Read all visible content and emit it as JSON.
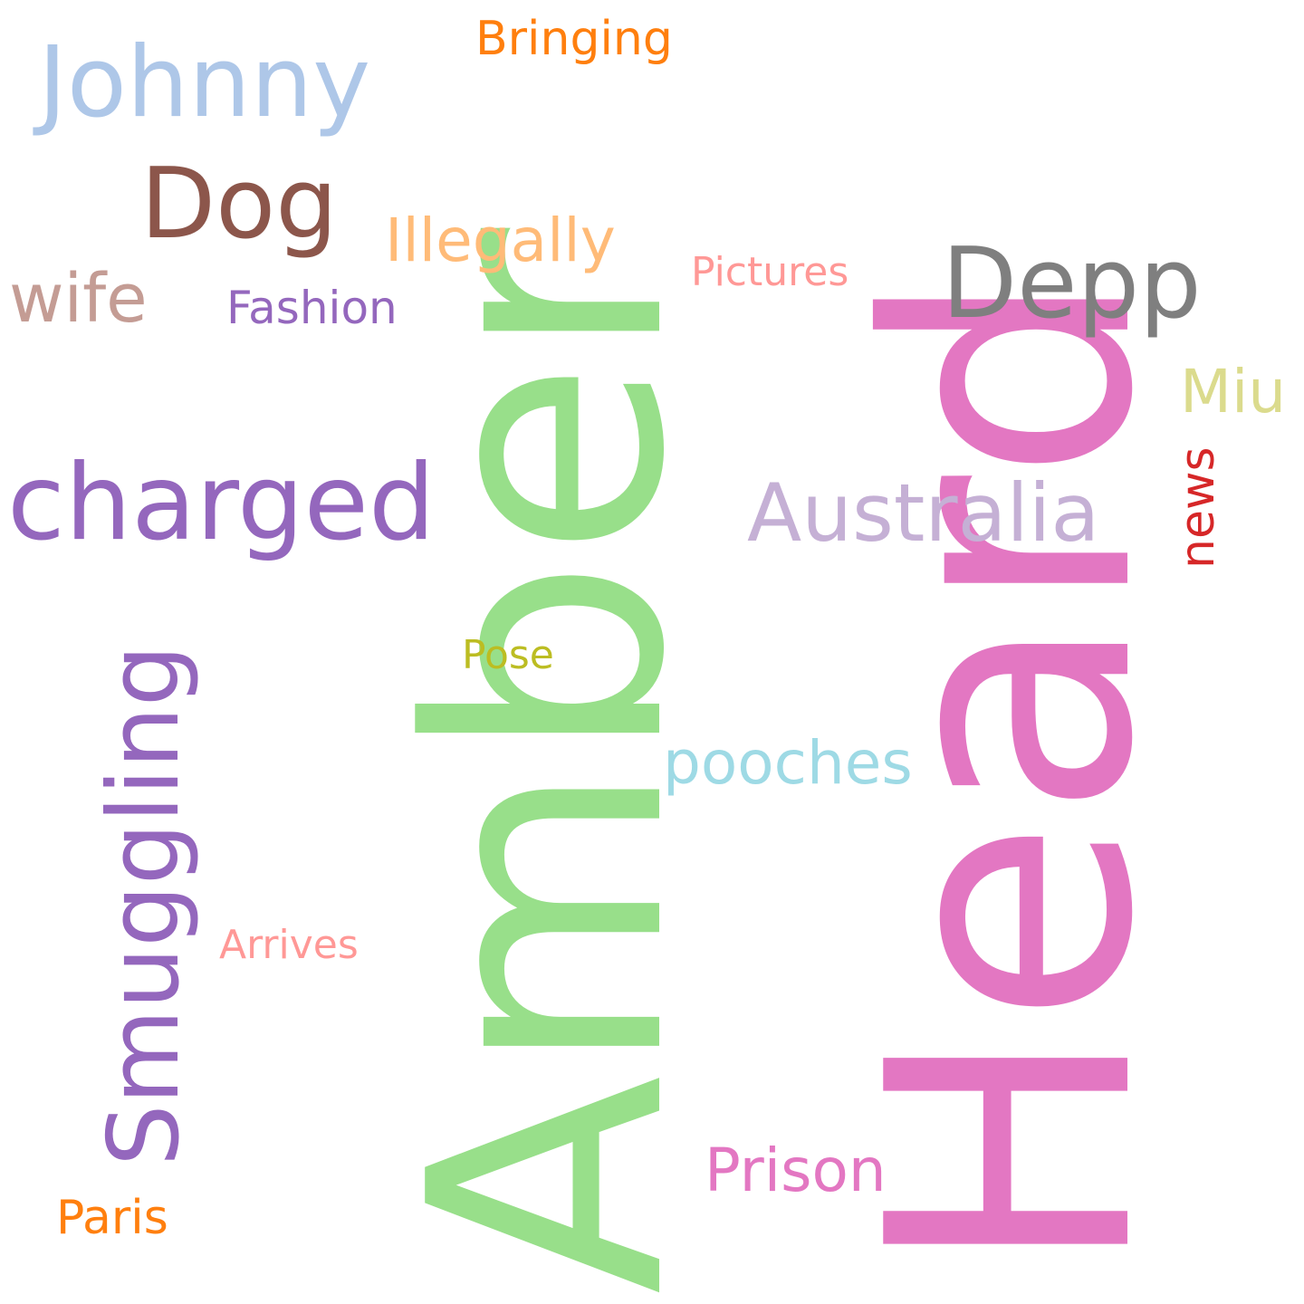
{
  "words": [
    {
      "key": "heard",
      "text": "Heard",
      "color": "#e377c2"
    },
    {
      "key": "amber",
      "text": "Amber",
      "color": "#98df8a"
    },
    {
      "key": "johnny",
      "text": "Johnny",
      "color": "#aec7e8"
    },
    {
      "key": "dog",
      "text": "Dog",
      "color": "#8c564b"
    },
    {
      "key": "depp",
      "text": "Depp",
      "color": "#7f7f7f"
    },
    {
      "key": "charged",
      "text": "charged",
      "color": "#9467bd"
    },
    {
      "key": "smuggling",
      "text": "Smuggling",
      "color": "#9467bd"
    },
    {
      "key": "australia",
      "text": "Australia",
      "color": "#c5b0d5"
    },
    {
      "key": "wife",
      "text": "wife",
      "color": "#c49c94"
    },
    {
      "key": "illegally",
      "text": "Illegally",
      "color": "#ffbb78"
    },
    {
      "key": "prison",
      "text": "Prison",
      "color": "#e377c2"
    },
    {
      "key": "pooches",
      "text": "pooches",
      "color": "#9edae5"
    },
    {
      "key": "miu",
      "text": "Miu",
      "color": "#dbdb8d"
    },
    {
      "key": "news",
      "text": "news",
      "color": "#d62728"
    },
    {
      "key": "fashion",
      "text": "Fashion",
      "color": "#9467bd"
    },
    {
      "key": "bringing",
      "text": "Bringing",
      "color": "#ff7f0e"
    },
    {
      "key": "paris",
      "text": "Paris",
      "color": "#ff7f0e"
    },
    {
      "key": "pictures",
      "text": "Pictures",
      "color": "#ff9896"
    },
    {
      "key": "arrives",
      "text": "Arrives",
      "color": "#ff9896"
    },
    {
      "key": "pose",
      "text": "Pose",
      "color": "#bcbd22"
    }
  ]
}
